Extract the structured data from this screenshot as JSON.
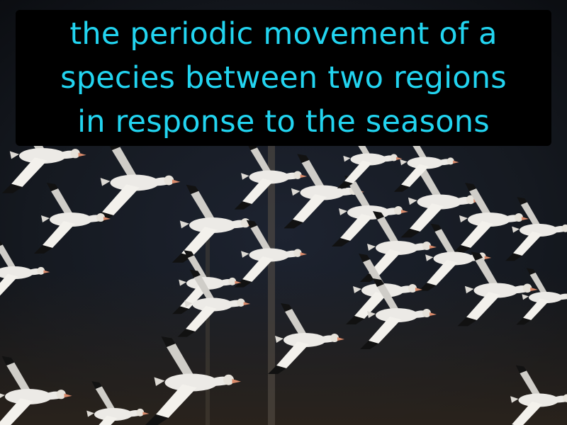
{
  "caption": {
    "lines": [
      "the periodic movement of a",
      "species between two regions",
      "in response to the seasons"
    ],
    "text_color": "#22d4f0",
    "box_color": "#000000"
  },
  "photo": {
    "subject": "flock of snow geese in flight",
    "background_color": "#14161c",
    "bird_color": "#eceae6",
    "wingtip_color": "#111111"
  }
}
